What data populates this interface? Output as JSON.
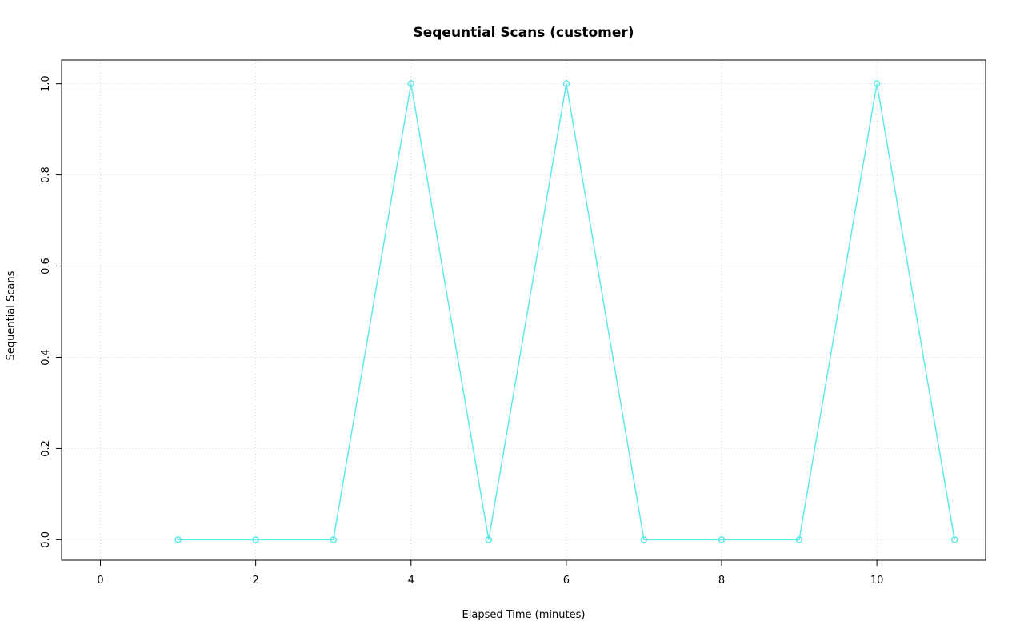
{
  "chart_data": {
    "type": "line",
    "title": "Seqeuntial Scans (customer)",
    "xlabel": "Elapsed Time (minutes)",
    "ylabel": "Sequential Scans",
    "x": [
      1,
      2,
      3,
      4,
      5,
      6,
      7,
      8,
      9,
      10,
      11
    ],
    "y": [
      0,
      0,
      0,
      1,
      0,
      1,
      0,
      0,
      0,
      1,
      0
    ],
    "xticks": [
      0,
      2,
      4,
      6,
      8,
      10
    ],
    "yticks": [
      0.0,
      0.2,
      0.4,
      0.6,
      0.8,
      1.0
    ],
    "xlim": [
      -0.5,
      11.4
    ],
    "ylim": [
      -0.045,
      1.052
    ],
    "grid": true,
    "legend_position": "none",
    "marker": "open-circle",
    "line_color": "#62E8E8",
    "grid_color": "#D6D6D6",
    "box_color": "#000000",
    "background_color": "#FFFFFF"
  }
}
